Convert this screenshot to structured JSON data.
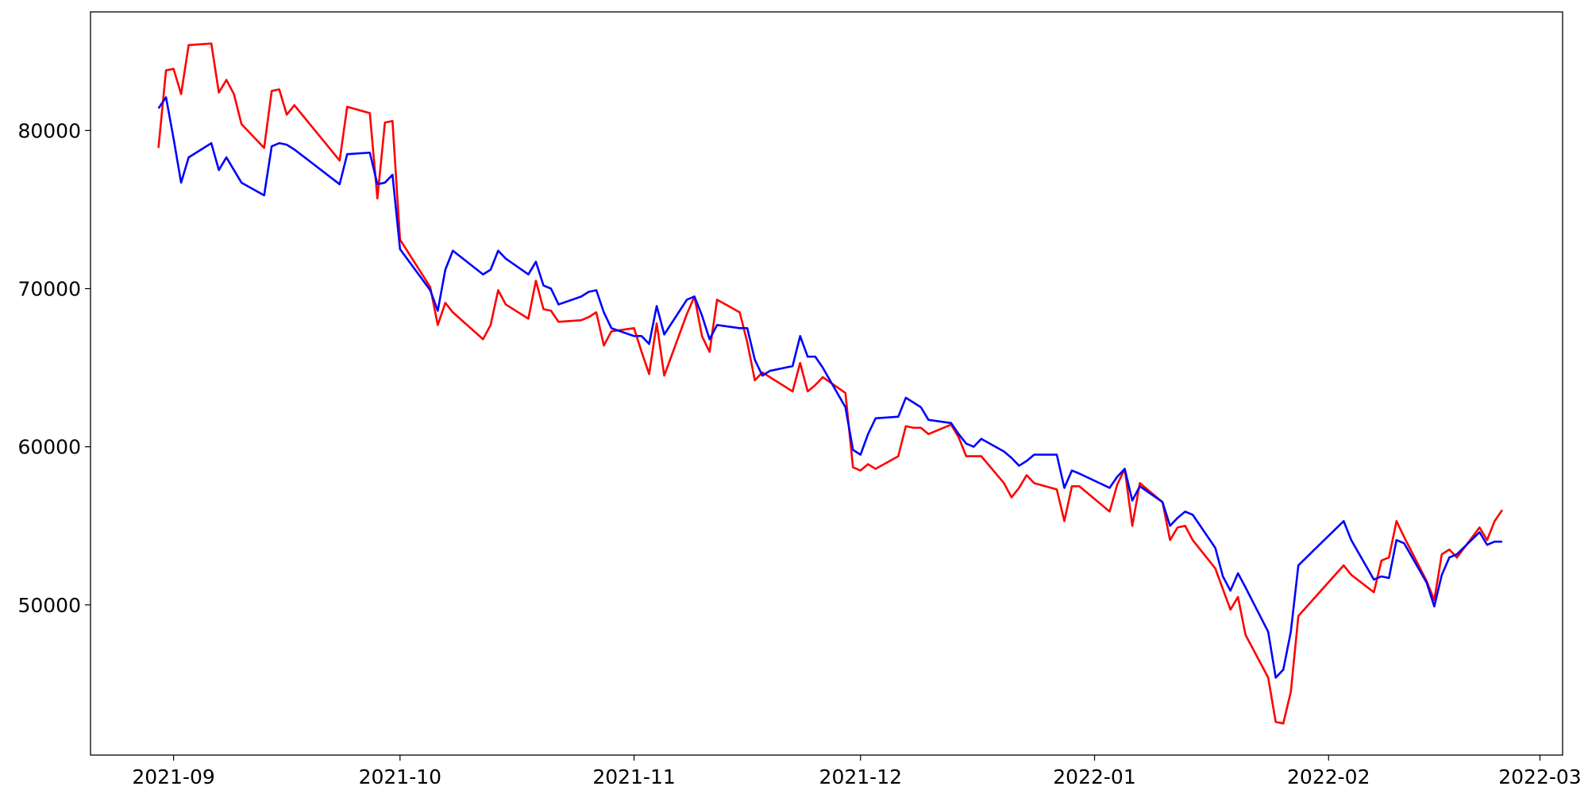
{
  "chart_data": {
    "type": "line",
    "x": [
      "2021-08-30",
      "2021-08-31",
      "2021-09-01",
      "2021-09-02",
      "2021-09-03",
      "2021-09-06",
      "2021-09-07",
      "2021-09-08",
      "2021-09-09",
      "2021-09-10",
      "2021-09-13",
      "2021-09-14",
      "2021-09-15",
      "2021-09-16",
      "2021-09-17",
      "2021-09-23",
      "2021-09-24",
      "2021-09-27",
      "2021-09-28",
      "2021-09-29",
      "2021-09-30",
      "2021-10-01",
      "2021-10-05",
      "2021-10-06",
      "2021-10-07",
      "2021-10-08",
      "2021-10-12",
      "2021-10-13",
      "2021-10-14",
      "2021-10-15",
      "2021-10-18",
      "2021-10-19",
      "2021-10-20",
      "2021-10-21",
      "2021-10-22",
      "2021-10-25",
      "2021-10-26",
      "2021-10-27",
      "2021-10-28",
      "2021-10-29",
      "2021-11-01",
      "2021-11-02",
      "2021-11-03",
      "2021-11-04",
      "2021-11-05",
      "2021-11-08",
      "2021-11-09",
      "2021-11-10",
      "2021-11-11",
      "2021-11-12",
      "2021-11-15",
      "2021-11-16",
      "2021-11-17",
      "2021-11-18",
      "2021-11-19",
      "2021-11-22",
      "2021-11-23",
      "2021-11-24",
      "2021-11-25",
      "2021-11-26",
      "2021-11-29",
      "2021-11-30",
      "2021-12-01",
      "2021-12-02",
      "2021-12-03",
      "2021-12-06",
      "2021-12-07",
      "2021-12-08",
      "2021-12-09",
      "2021-12-10",
      "2021-12-13",
      "2021-12-14",
      "2021-12-15",
      "2021-12-16",
      "2021-12-17",
      "2021-12-20",
      "2021-12-21",
      "2021-12-22",
      "2021-12-23",
      "2021-12-24",
      "2021-12-27",
      "2021-12-28",
      "2021-12-29",
      "2021-12-30",
      "2022-01-03",
      "2022-01-04",
      "2022-01-05",
      "2022-01-06",
      "2022-01-07",
      "2022-01-10",
      "2022-01-11",
      "2022-01-12",
      "2022-01-13",
      "2022-01-14",
      "2022-01-17",
      "2022-01-18",
      "2022-01-19",
      "2022-01-20",
      "2022-01-21",
      "2022-01-24",
      "2022-01-25",
      "2022-01-26",
      "2022-01-27",
      "2022-01-28",
      "2022-02-03",
      "2022-02-04",
      "2022-02-07",
      "2022-02-08",
      "2022-02-09",
      "2022-02-10",
      "2022-02-11",
      "2022-02-14",
      "2022-02-15",
      "2022-02-16",
      "2022-02-17",
      "2022-02-18",
      "2022-02-21",
      "2022-02-22",
      "2022-02-23",
      "2022-02-24"
    ],
    "series": [
      {
        "color": "#ff0000",
        "values": [
          78900,
          83800,
          83900,
          82300,
          85400,
          85500,
          82400,
          83200,
          82300,
          80400,
          78900,
          82500,
          82600,
          81000,
          81600,
          78100,
          81500,
          81100,
          75700,
          80500,
          80600,
          73100,
          70100,
          67700,
          69100,
          68500,
          66800,
          67700,
          69900,
          69000,
          68100,
          70500,
          68700,
          68600,
          67900,
          68000,
          68200,
          68500,
          66400,
          67300,
          67500,
          66000,
          64600,
          67800,
          64500,
          68400,
          69500,
          67000,
          66000,
          69300,
          68500,
          66600,
          64200,
          64700,
          64400,
          63500,
          65300,
          63500,
          63900,
          64400,
          63400,
          58700,
          58500,
          58900,
          58600,
          59400,
          61300,
          61200,
          61200,
          60800,
          61400,
          60600,
          59400,
          59400,
          59400,
          57700,
          56800,
          57400,
          58200,
          57700,
          57300,
          55300,
          57500,
          57500,
          55900,
          57600,
          58600,
          55000,
          57700,
          56500,
          54100,
          54900,
          55000,
          54100,
          52300,
          51000,
          49700,
          50500,
          48100,
          45400,
          42600,
          42500,
          44500,
          49300,
          52500,
          51900,
          50800,
          52800,
          53000,
          55300,
          54300,
          51500,
          50300,
          53200,
          53500,
          53000,
          54900,
          54100,
          55300,
          56000
        ]
      },
      {
        "color": "#0000ff",
        "values": [
          81400,
          82100,
          79500,
          76700,
          78300,
          79200,
          77500,
          78300,
          77500,
          76700,
          75900,
          79000,
          79200,
          79100,
          78800,
          76600,
          78500,
          78600,
          76600,
          76700,
          77200,
          72500,
          69900,
          68600,
          71200,
          72400,
          70900,
          71200,
          72400,
          71900,
          70900,
          71700,
          70200,
          70000,
          69000,
          69500,
          69800,
          69900,
          68500,
          67500,
          67000,
          67000,
          66500,
          68900,
          67100,
          69300,
          69500,
          68300,
          66800,
          67700,
          67500,
          67500,
          65500,
          64500,
          64800,
          65100,
          67000,
          65700,
          65700,
          65000,
          62500,
          59800,
          59500,
          60800,
          61800,
          61900,
          63100,
          62800,
          62500,
          61700,
          61500,
          60800,
          60200,
          60000,
          60500,
          59700,
          59300,
          58800,
          59100,
          59500,
          59500,
          57400,
          58500,
          58300,
          57400,
          58100,
          58600,
          56600,
          57500,
          56500,
          55000,
          55500,
          55900,
          55700,
          53600,
          51800,
          50900,
          52000,
          51100,
          48300,
          45400,
          45900,
          48300,
          52500,
          55300,
          54100,
          51600,
          51800,
          51700,
          54100,
          53900,
          51400,
          49900,
          51900,
          53000,
          53200,
          54600,
          53800,
          54000,
          54000
        ]
      }
    ],
    "xlim": [
      "2021-08-21",
      "2022-03-04"
    ],
    "xticks": [
      "2021-09",
      "2021-10",
      "2021-11",
      "2021-12",
      "2022-01",
      "2022-02",
      "2022-03"
    ],
    "ylim": [
      40500,
      87500
    ],
    "yticks": [
      50000,
      60000,
      70000,
      80000
    ]
  }
}
